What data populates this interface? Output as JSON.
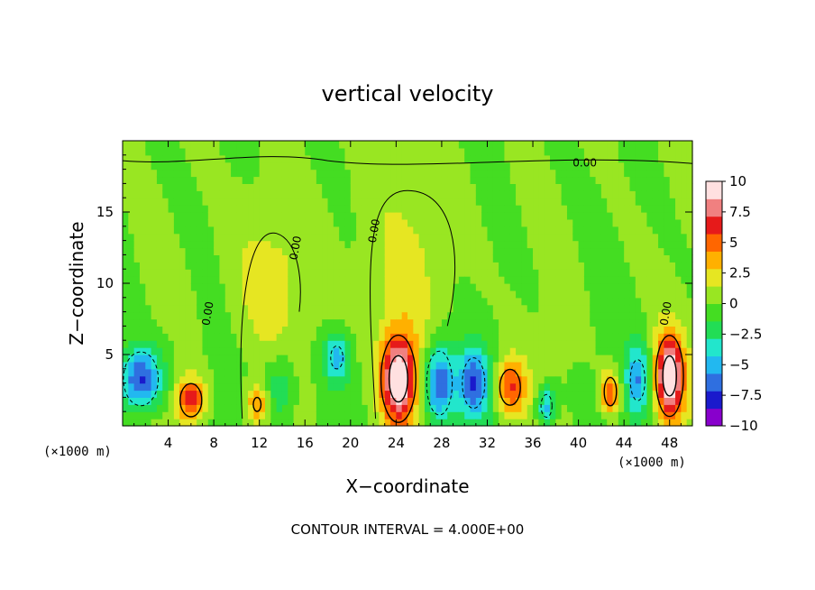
{
  "chart_data": {
    "type": "heatmap",
    "title": "vertical velocity",
    "xlabel": "X−coordinate",
    "ylabel": "Z−coordinate",
    "x_unit_left": "(×1000 m)",
    "x_unit_right": "(×1000 m)",
    "xlim": [
      0,
      50
    ],
    "ylim": [
      0,
      20
    ],
    "x_ticks": [
      4,
      8,
      12,
      16,
      20,
      24,
      28,
      32,
      36,
      40,
      44,
      48
    ],
    "x_tick_labels": [
      "4",
      "8",
      "12",
      "16",
      "20",
      "24",
      "28",
      "32",
      "36",
      "40",
      "44",
      "48"
    ],
    "y_ticks": [
      5,
      10,
      15
    ],
    "y_tick_labels": [
      "5",
      "10",
      "15"
    ],
    "contour_interval_text": "CONTOUR INTERVAL = 4.000E+00",
    "contour_labels": [
      "0.00",
      "0.00",
      "0.00",
      "0.00",
      "0.00"
    ],
    "colorbar": {
      "min": -10,
      "max": 10,
      "tick_values": [
        10,
        7.5,
        5,
        2.5,
        0,
        -2.5,
        -5,
        -7.5,
        -10
      ],
      "tick_labels": [
        "10",
        "7.5",
        "5",
        "2.5",
        "0",
        "−2.5",
        "−5",
        "−7.5",
        "−10"
      ],
      "colors": [
        "#8800cc",
        "#1a1acc",
        "#2f6fe0",
        "#22b8f0",
        "#22e6cc",
        "#22dd55",
        "#44dd22",
        "#99e622",
        "#e6e622",
        "#ffb000",
        "#ff6600",
        "#e61a1a",
        "#f08080",
        "#ffe0e0"
      ]
    },
    "features": [
      {
        "x": 24.2,
        "z": 3.3,
        "amplitude": 10.5,
        "sx": 1.1,
        "sz": 2.2
      },
      {
        "x": 48.0,
        "z": 3.5,
        "amplitude": 10.0,
        "sx": 0.9,
        "sz": 2.1
      },
      {
        "x": 6.0,
        "z": 1.8,
        "amplitude": 7.0,
        "sx": 0.9,
        "sz": 1.1
      },
      {
        "x": 34.0,
        "z": 2.7,
        "amplitude": 6.0,
        "sx": 1.0,
        "sz": 1.4
      },
      {
        "x": 42.8,
        "z": 2.4,
        "amplitude": 6.0,
        "sx": 0.6,
        "sz": 1.1
      },
      {
        "x": 11.8,
        "z": 1.5,
        "amplitude": 4.5,
        "sx": 0.7,
        "sz": 1.0
      },
      {
        "x": 1.6,
        "z": 3.3,
        "amplitude": -8.0,
        "sx": 1.3,
        "sz": 1.6
      },
      {
        "x": 27.8,
        "z": 3.0,
        "amplitude": -7.5,
        "sx": 1.0,
        "sz": 2.0
      },
      {
        "x": 30.8,
        "z": 3.0,
        "amplitude": -6.5,
        "sx": 1.0,
        "sz": 1.8
      },
      {
        "x": 45.2,
        "z": 3.2,
        "amplitude": -5.5,
        "sx": 0.8,
        "sz": 1.8
      },
      {
        "x": 37.2,
        "z": 1.4,
        "amplitude": -5.5,
        "sx": 0.6,
        "sz": 1.0
      },
      {
        "x": 18.8,
        "z": 4.8,
        "amplitude": -5.0,
        "sx": 0.8,
        "sz": 1.2
      },
      {
        "x": 13.8,
        "z": 2.5,
        "amplitude": -3.5,
        "sx": 1.0,
        "sz": 2.0
      },
      {
        "x": 12.8,
        "z": 10.0,
        "amplitude": 2.0,
        "sx": 2.5,
        "sz": 4.0
      },
      {
        "x": 24.5,
        "z": 11.0,
        "amplitude": 1.6,
        "sx": 3.0,
        "sz": 5.0
      }
    ]
  }
}
